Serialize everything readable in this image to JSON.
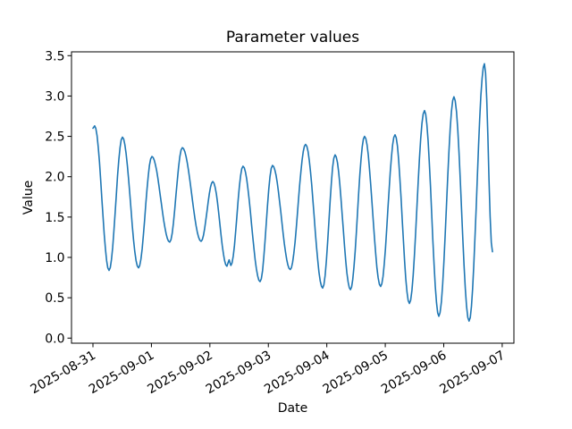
{
  "chart_data": {
    "type": "line",
    "title": "Parameter values",
    "xlabel": "Date",
    "ylabel": "Value",
    "line_color": "#1f77b4",
    "background_color": "#ffffff",
    "grid": false,
    "legend": null,
    "x_tick_labels": [
      "2025-08-31",
      "2025-09-01",
      "2025-09-02",
      "2025-09-03",
      "2025-09-04",
      "2025-09-05",
      "2025-09-06",
      "2025-09-07"
    ],
    "x_tick_hours": [
      0,
      24,
      48,
      72,
      96,
      120,
      144,
      168
    ],
    "y_tick_labels": [
      "0.0",
      "0.5",
      "1.0",
      "1.5",
      "2.0",
      "2.5",
      "3.0",
      "3.5"
    ],
    "y_ticks": [
      0,
      0.5,
      1,
      1.5,
      2,
      2.5,
      3,
      3.5
    ],
    "x_start_date": "2025-08-31",
    "x_range_hours": [
      0,
      164
    ],
    "ylim": [
      -0.06,
      3.55
    ],
    "interpolation": "half-cosine through sampled extrema",
    "points_hours_value": [
      [
        0,
        2.6
      ],
      [
        0.7,
        2.63
      ],
      [
        6.6,
        0.84
      ],
      [
        12.1,
        2.49
      ],
      [
        18.7,
        0.87
      ],
      [
        24.2,
        2.25
      ],
      [
        31.5,
        1.19
      ],
      [
        36.7,
        2.36
      ],
      [
        44.4,
        1.2
      ],
      [
        49.2,
        1.94
      ],
      [
        55.0,
        0.89
      ],
      [
        55.9,
        0.97
      ],
      [
        56.6,
        0.9
      ],
      [
        61.6,
        2.13
      ],
      [
        68.6,
        0.7
      ],
      [
        73.7,
        2.14
      ],
      [
        81.0,
        0.85
      ],
      [
        87.3,
        2.4
      ],
      [
        94.3,
        0.62
      ],
      [
        99.4,
        2.27
      ],
      [
        105.7,
        0.6
      ],
      [
        111.5,
        2.5
      ],
      [
        118.1,
        0.64
      ],
      [
        124.0,
        2.52
      ],
      [
        129.9,
        0.43
      ],
      [
        136.1,
        2.82
      ],
      [
        142.0,
        0.27
      ],
      [
        148.2,
        2.99
      ],
      [
        154.4,
        0.21
      ],
      [
        160.7,
        3.4
      ],
      [
        164.0,
        1.07
      ]
    ]
  }
}
